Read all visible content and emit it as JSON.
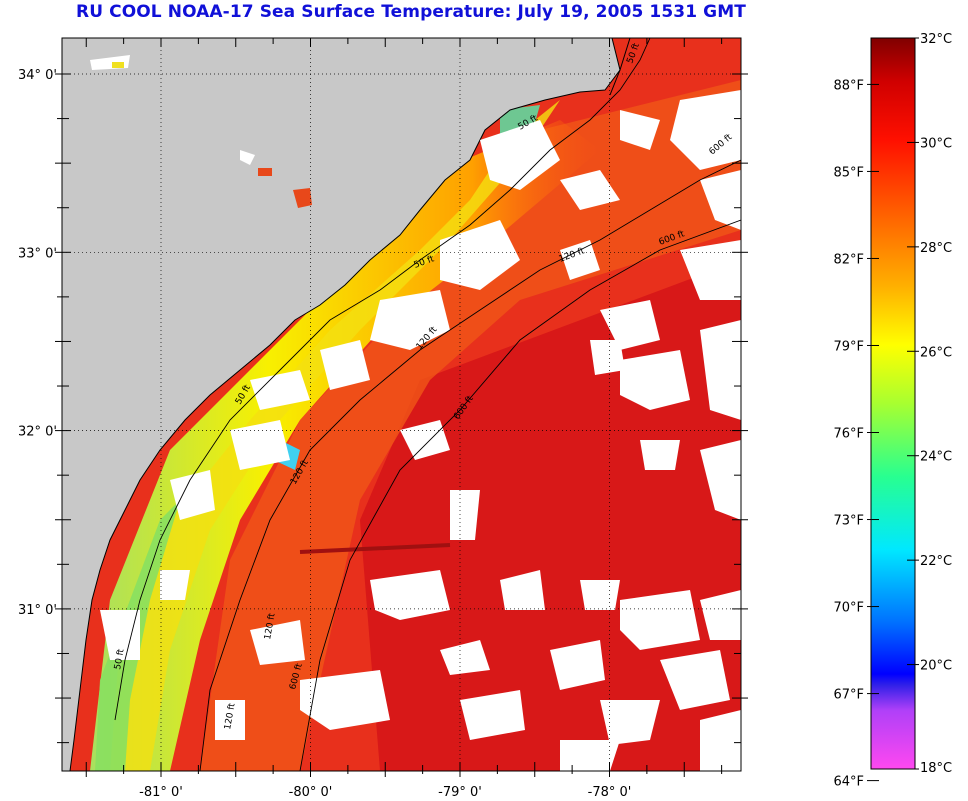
{
  "title": "RU COOL  NOAA-17  Sea Surface Temperature:  July 19, 2005 1531 GMT",
  "map": {
    "latitude_labels": [
      {
        "lat": 34,
        "label": "34° 0'"
      },
      {
        "lat": 33,
        "label": "33° 0'"
      },
      {
        "lat": 32,
        "label": "32° 0'"
      },
      {
        "lat": 31,
        "label": "31° 0'"
      }
    ],
    "longitude_labels": [
      {
        "lon": -81,
        "label": "-81° 0'"
      },
      {
        "lon": -80,
        "label": "-80° 0'"
      },
      {
        "lon": -79,
        "label": "-79° 0'"
      },
      {
        "lon": -78,
        "label": "-78° 0'"
      }
    ],
    "depth_contour_labels": [
      "50 ft",
      "120 ft",
      "600 ft"
    ],
    "colors": {
      "land": "#c8c8c8",
      "cloud": "#ffffff",
      "warm_sst": "#e8281a",
      "contour": "#000000"
    }
  },
  "colorbar": {
    "fahrenheit_labels": [
      "88°F",
      "85°F",
      "82°F",
      "79°F",
      "76°F",
      "73°F",
      "70°F",
      "67°F",
      "64°F"
    ],
    "celsius_labels": [
      "32°C",
      "30°C",
      "28°C",
      "26°C",
      "24°C",
      "22°C",
      "20°C",
      "18°C"
    ],
    "range_celsius": [
      18,
      32
    ],
    "range_fahrenheit": [
      64,
      89.6
    ]
  }
}
